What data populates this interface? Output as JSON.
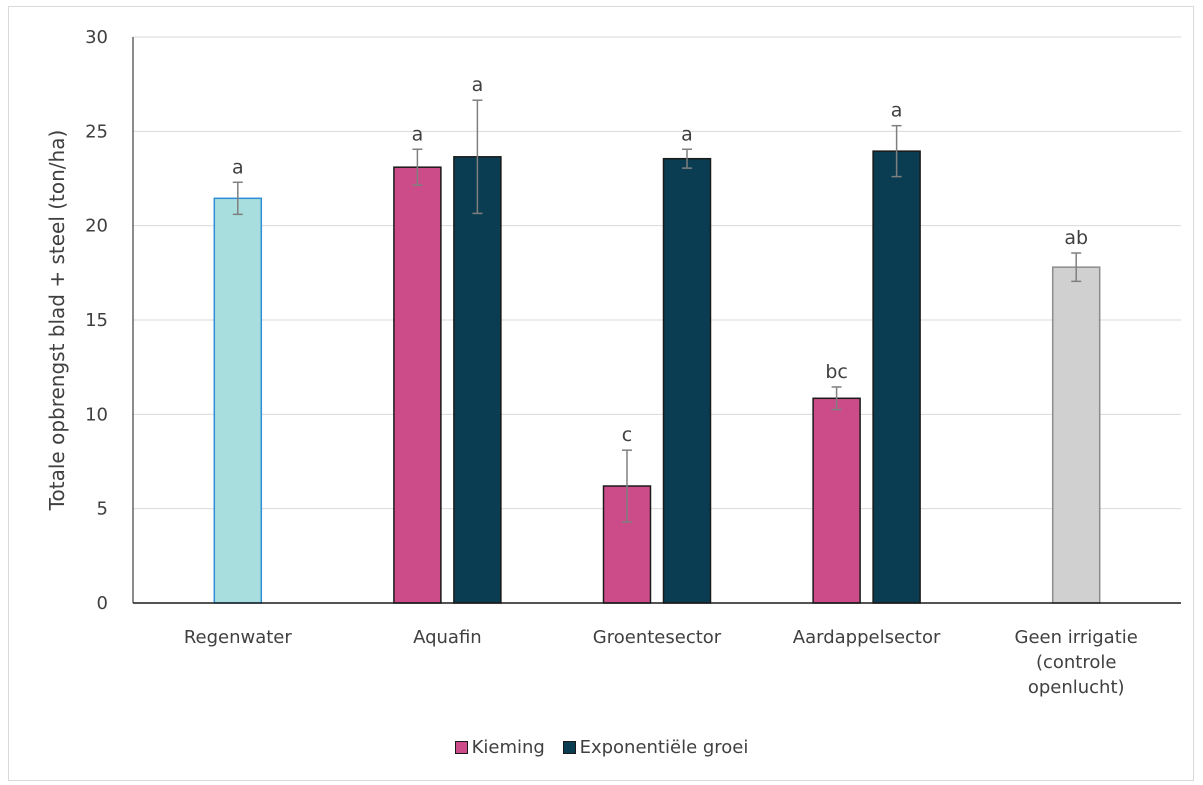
{
  "chart_data": {
    "type": "bar",
    "ylabel": "Totale opbrengst blad + steel (ton/ha)",
    "ylim": [
      0,
      30
    ],
    "yticks": [
      0,
      5,
      10,
      15,
      20,
      25,
      30
    ],
    "grid": true,
    "legend_position": "bottom",
    "categories": [
      [
        "Regenwater"
      ],
      [
        "Aquafin"
      ],
      [
        "Groentesector"
      ],
      [
        "Aardappelsector"
      ],
      [
        "Geen irrigatie",
        "(controle",
        "openlucht)"
      ]
    ],
    "series": [
      {
        "name": "Kieming",
        "color": "#cc4c8a",
        "values": [
          null,
          23.1,
          6.2,
          10.85,
          null
        ],
        "errors": [
          null,
          0.95,
          1.9,
          0.6,
          null
        ],
        "labels": [
          "",
          "a",
          "c",
          "bc",
          ""
        ]
      },
      {
        "name": "Exponentiële groei",
        "color": "#0b3d52",
        "values": [
          null,
          23.65,
          23.55,
          23.95,
          null
        ],
        "errors": [
          null,
          3.0,
          0.5,
          1.35,
          null
        ],
        "labels": [
          "",
          "a",
          "a",
          "a",
          ""
        ]
      }
    ],
    "single_bars": [
      {
        "category_index": 0,
        "value": 21.45,
        "error": 0.85,
        "label": "a",
        "fill": "#a8dede",
        "stroke": "#2e8fd6"
      },
      {
        "category_index": 4,
        "value": 17.8,
        "error": 0.75,
        "label": "ab",
        "fill": "#d0d0d0",
        "stroke": "#8c8c8c"
      }
    ]
  }
}
